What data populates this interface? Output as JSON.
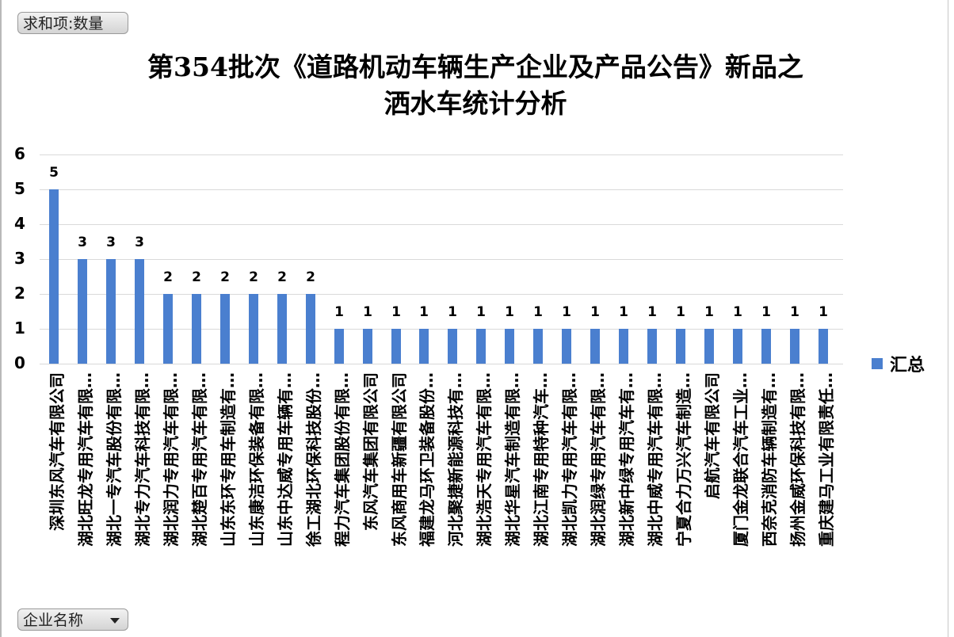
{
  "pivot": {
    "value_field_button": "求和项:数量",
    "axis_field_button": "企业名称",
    "axis_field_icon": "dropdown-caret-icon"
  },
  "chart_data": {
    "type": "bar",
    "title": "第354批次《道路机动车辆生产企业及产品公告》新品之洒水车统计分析",
    "title_lines": [
      "第354批次《道路机动车辆生产企业及产品公告》新品之",
      "洒水车统计分析"
    ],
    "xlabel": "企业名称",
    "ylabel": "",
    "ylim": [
      0,
      6
    ],
    "yticks": [
      "0",
      "1",
      "2",
      "3",
      "4",
      "5",
      "6"
    ],
    "grid": true,
    "legend_position": "right",
    "data_labels": true,
    "bar_color": "#4a7fcf",
    "categories": [
      "深圳东风汽车有限公司",
      "湖北旺龙专用汽车有限…",
      "湖北一专汽车股份有限…",
      "湖北专力汽车科技有限…",
      "湖北润力专用汽车有限…",
      "湖北楚百专用汽车有限…",
      "山东东环专用车制造有…",
      "山东康洁环保装备有限…",
      "山东中达威专用车辆有…",
      "徐工湖北环保科技股份…",
      "程力汽车集团股份有限…",
      "东风汽车集团有限公司",
      "东风商用车新疆有限公司",
      "福建龙马环卫装备股份…",
      "河北聚捷新能源科技有…",
      "湖北浩天专用汽车有限…",
      "湖北华星汽车制造有限…",
      "湖北江南专用特种汽车…",
      "湖北凯力专用汽车有限…",
      "湖北润绿专用汽车有限…",
      "湖北新中绿专用汽车有…",
      "湖北中威专用汽车有限…",
      "宁夏合力万兴汽车制造…",
      "启航汽车有限公司",
      "厦门金龙联合汽车工业…",
      "西奈克消防车辆制造有…",
      "扬州金威环保科技有限…",
      "重庆建马工业有限责任…"
    ],
    "series": [
      {
        "name": "汇总",
        "values": [
          5,
          3,
          3,
          3,
          2,
          2,
          2,
          2,
          2,
          2,
          1,
          1,
          1,
          1,
          1,
          1,
          1,
          1,
          1,
          1,
          1,
          1,
          1,
          1,
          1,
          1,
          1,
          1
        ]
      }
    ]
  }
}
